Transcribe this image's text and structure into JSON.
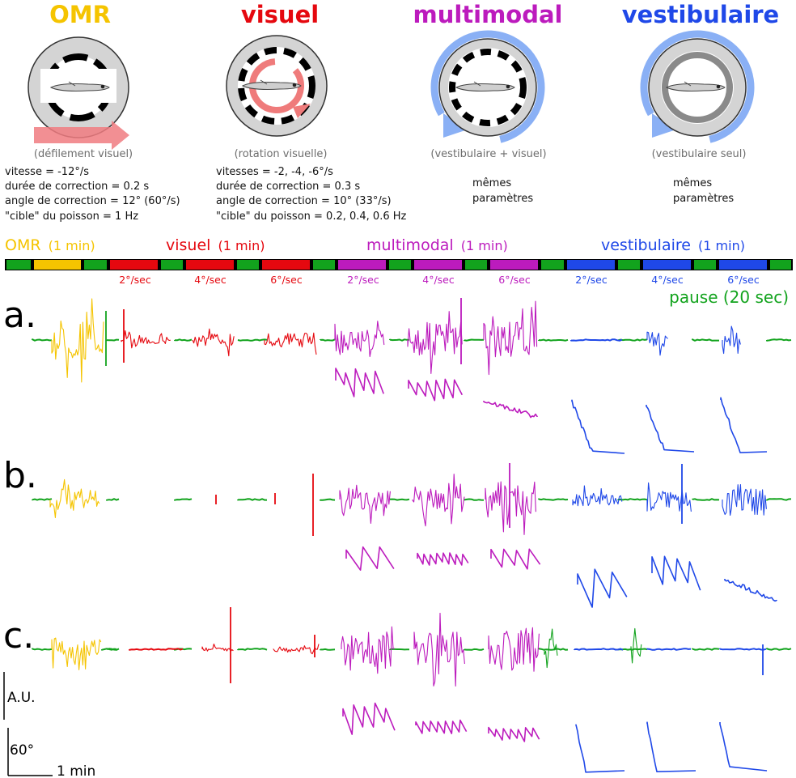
{
  "colors": {
    "omr": "#f5c400",
    "visuel": "#e5080f",
    "multimodal": "#bc1bbd",
    "vestibulaire": "#1f48e8",
    "pause": "#12a31d"
  },
  "panels": [
    {
      "id": "omr",
      "title": "OMR",
      "caption": "(défilement visuel)",
      "params": [
        "vitesse = -12°/s",
        "durée de correction = 0.2 s",
        "angle de correction = 12° (60°/s)",
        "\"cible\" du poisson = 1 Hz"
      ],
      "icon": "fish-linear-grating-icon"
    },
    {
      "id": "visuel",
      "title": "visuel",
      "caption": "(rotation visuelle)",
      "params": [
        "vitesses = -2, -4, -6°/s",
        "durée de correction = 0.3 s",
        "angle de correction = 10° (33°/s)",
        "\"cible\" du poisson = 0.2, 0.4, 0.6 Hz"
      ],
      "icon": "fish-rotating-grating-icon"
    },
    {
      "id": "multimodal",
      "title": "multimodal",
      "caption": "(vestibulaire + visuel)",
      "params": [
        "mêmes",
        "paramètres"
      ],
      "icon": "fish-rotating-platform-grating-icon"
    },
    {
      "id": "vestibulaire",
      "title": "vestibulaire",
      "caption": "(vestibulaire seul)",
      "params": [
        "mêmes",
        "paramètres"
      ],
      "icon": "fish-rotating-platform-icon"
    }
  ],
  "protocol": {
    "stimuli": [
      {
        "name": "OMR",
        "duration": "(1 min)"
      },
      {
        "name": "visuel",
        "duration": "(1 min)"
      },
      {
        "name": "multimodal",
        "duration": "(1 min)"
      },
      {
        "name": "vestibulaire",
        "duration": "(1 min)"
      }
    ],
    "speed_labels": [
      "2°/sec",
      "4°/sec",
      "6°/sec"
    ],
    "pause_label": "pause (20 sec)"
  },
  "rows": [
    "a.",
    "b.",
    "c."
  ],
  "scale_bars": {
    "amplitude": "A.U.",
    "angle": "60°",
    "time": "1 min"
  }
}
